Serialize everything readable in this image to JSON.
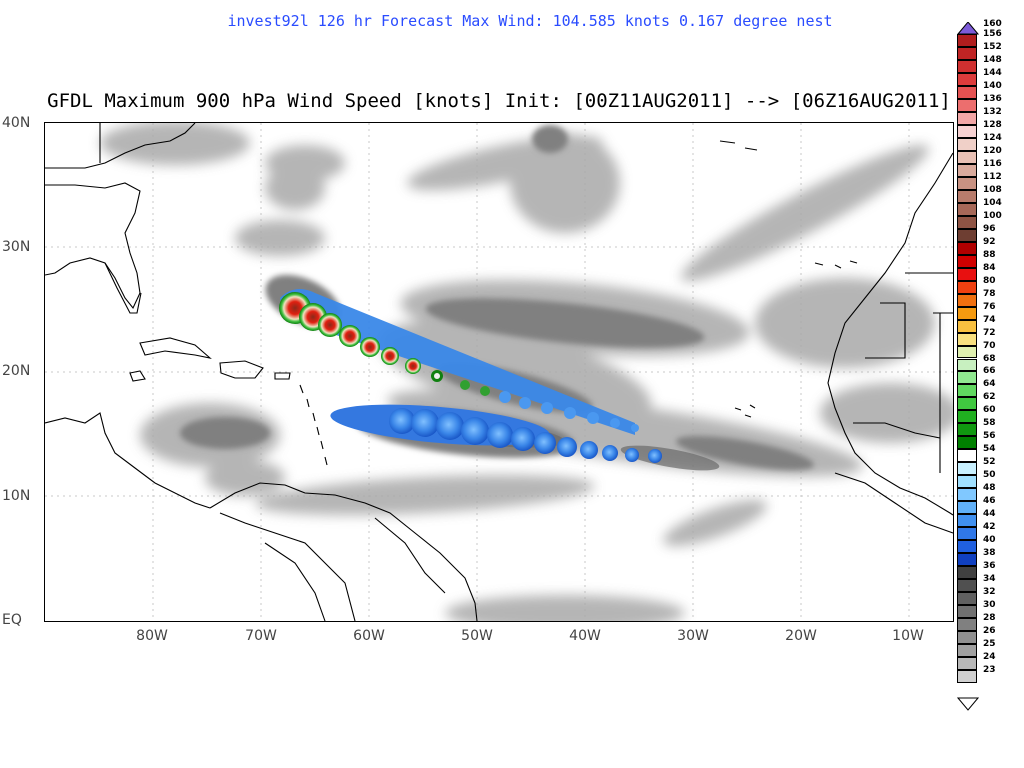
{
  "header": {
    "subtitle": "invest92l 126 hr Forecast Max Wind: 104.585 knots 0.167 degree nest",
    "title": "GFDL Maximum 900 hPa Wind Speed [knots] Init: [00Z11AUG2011] --> [06Z16AUG2011]"
  },
  "axes": {
    "lat_labels": [
      "40N",
      "30N",
      "20N",
      "10N",
      "EQ"
    ],
    "lon_labels": [
      "80W",
      "70W",
      "60W",
      "50W",
      "40W",
      "30W",
      "20W",
      "10W"
    ]
  },
  "colorbar": {
    "labels": [
      "160",
      "156",
      "152",
      "148",
      "144",
      "140",
      "136",
      "132",
      "128",
      "124",
      "120",
      "116",
      "112",
      "108",
      "104",
      "100",
      "96",
      "92",
      "88",
      "84",
      "80",
      "78",
      "76",
      "74",
      "72",
      "70",
      "68",
      "66",
      "64",
      "62",
      "60",
      "58",
      "56",
      "54",
      "52",
      "50",
      "48",
      "46",
      "44",
      "42",
      "40",
      "38",
      "36",
      "34",
      "32",
      "30",
      "28",
      "26",
      "25",
      "24",
      "23"
    ],
    "colors": [
      "#7d5bd8",
      "#b01e1e",
      "#c02424",
      "#d03030",
      "#dc3c3c",
      "#e45252",
      "#ec6e6e",
      "#f2a6a6",
      "#f7d2d2",
      "#f0d0c8",
      "#e8c0b4",
      "#d9aa9c",
      "#c99282",
      "#b87c6c",
      "#a66858",
      "#8f5444",
      "#6e3e32",
      "#b00000",
      "#d00000",
      "#e81010",
      "#f04010",
      "#f07010",
      "#f59a10",
      "#f8c040",
      "#f8e080",
      "#e0f0b0",
      "#c8f0c0",
      "#90e890",
      "#60d860",
      "#40c840",
      "#20b020",
      "#109810",
      "#008000",
      "#ffffff",
      "#c8f0ff",
      "#a0e0ff",
      "#80c8ff",
      "#60b0f8",
      "#4090f0",
      "#3078e8",
      "#2060e0",
      "#1040c0",
      "#404040",
      "#505050",
      "#606060",
      "#707070",
      "#808080",
      "#909090",
      "#a0a0a0",
      "#b8b8b8",
      "#d0d0d0"
    ]
  }
}
